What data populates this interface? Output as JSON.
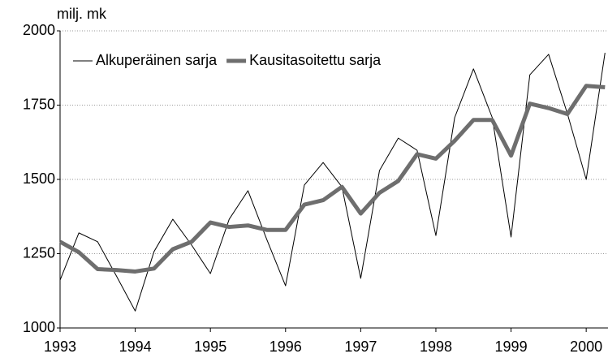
{
  "chart_data": {
    "type": "line",
    "ylabel": "milj. mk",
    "x": [
      1993,
      1993.25,
      1993.5,
      1993.75,
      1994,
      1994.25,
      1994.5,
      1994.75,
      1995,
      1995.25,
      1995.5,
      1995.75,
      1996,
      1996.25,
      1996.5,
      1996.75,
      1997,
      1997.25,
      1997.5,
      1997.75,
      1998,
      1998.25,
      1998.5,
      1998.75,
      1999,
      1999.25,
      1999.5,
      1999.75,
      2000,
      2000.25
    ],
    "series": [
      {
        "name": "Alkuperäinen sarja",
        "color": "#000000",
        "width": 1,
        "values": [
          1161,
          1320,
          1290,
          1175,
          1057,
          1257,
          1366,
          1279,
          1183,
          1366,
          1462,
          1298,
          1142,
          1481,
          1557,
          1475,
          1167,
          1530,
          1639,
          1598,
          1311,
          1708,
          1872,
          1708,
          1306,
          1852,
          1921,
          1721,
          1500,
          1926
        ]
      },
      {
        "name": "Kausitasoitettu sarja",
        "color": "#6e6e6e",
        "width": 5,
        "values": [
          1290,
          1255,
          1198,
          1195,
          1190,
          1200,
          1265,
          1290,
          1355,
          1340,
          1345,
          1330,
          1330,
          1415,
          1430,
          1475,
          1385,
          1455,
          1495,
          1585,
          1570,
          1630,
          1700,
          1700,
          1580,
          1755,
          1740,
          1720,
          1815,
          1810
        ]
      }
    ],
    "xlim": [
      1993,
      2000.29
    ],
    "xticks": [
      1993,
      1994,
      1995,
      1996,
      1997,
      1998,
      1999,
      2000
    ],
    "ylim": [
      1000,
      2000
    ],
    "yticks": [
      1000,
      1250,
      1500,
      1750,
      2000
    ],
    "grid": true,
    "legend": "upper-left"
  }
}
